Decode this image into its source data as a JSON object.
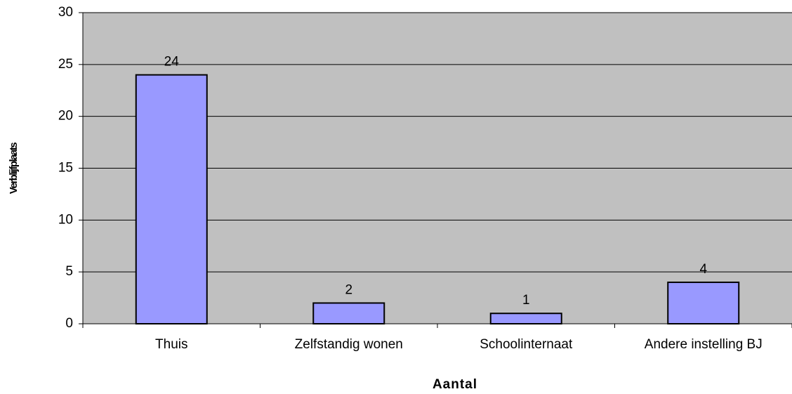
{
  "chart_data": {
    "type": "bar",
    "categories": [
      "Thuis",
      "Zelfstandig wonen",
      "Schoolinternaat",
      "Andere instelling BJ"
    ],
    "values": [
      24,
      2,
      1,
      4
    ],
    "color": "#9999ff",
    "plot_background": "#c0c0c0",
    "ylim": [
      0,
      30
    ],
    "yticks": [
      0,
      5,
      10,
      15,
      20,
      25,
      30
    ],
    "grid": true,
    "xlabel": "Aantal",
    "ylabel": "Verblijfplaats"
  }
}
